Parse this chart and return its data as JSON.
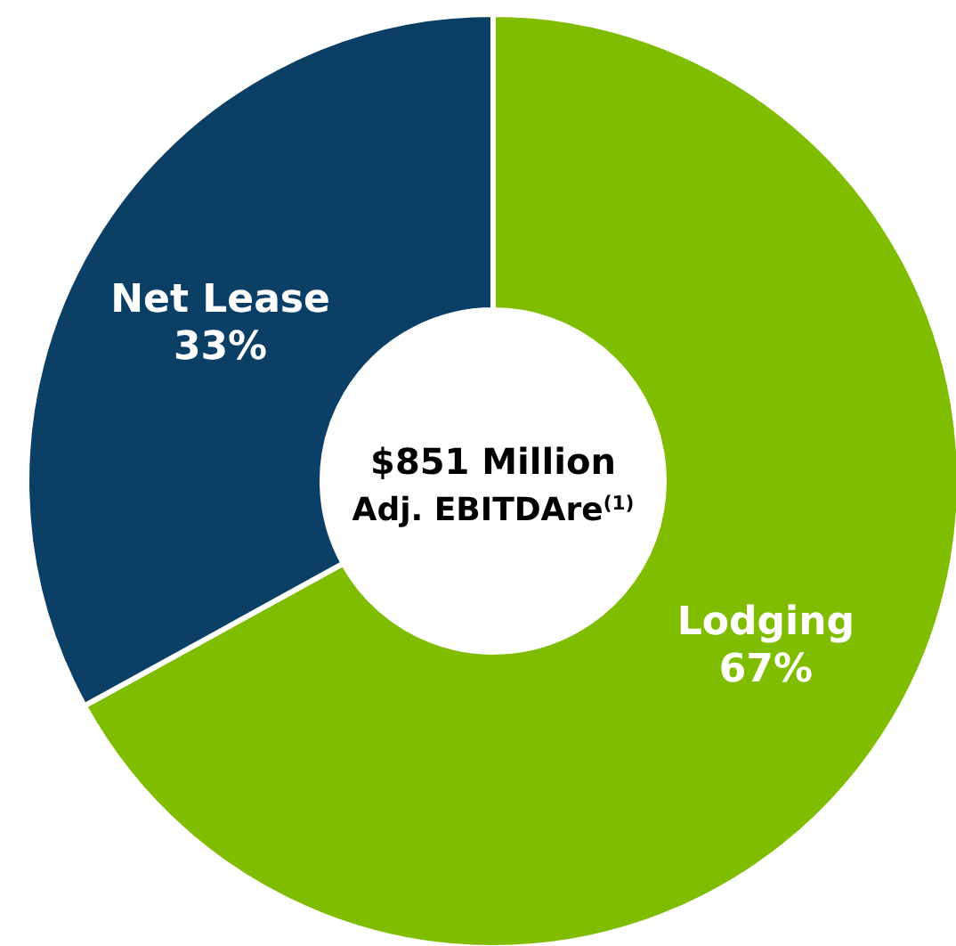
{
  "chart_data": {
    "type": "donut",
    "title": "$851 Million",
    "subtitle": "Adj. EBITDAre$^{(1)}$",
    "categories": [
      "Lodging",
      "Net Lease"
    ],
    "values": [
      67,
      33
    ],
    "colors": [
      "#80bd00",
      "#0b3f66"
    ],
    "value_labels": [
      "67%",
      "33%"
    ]
  }
}
